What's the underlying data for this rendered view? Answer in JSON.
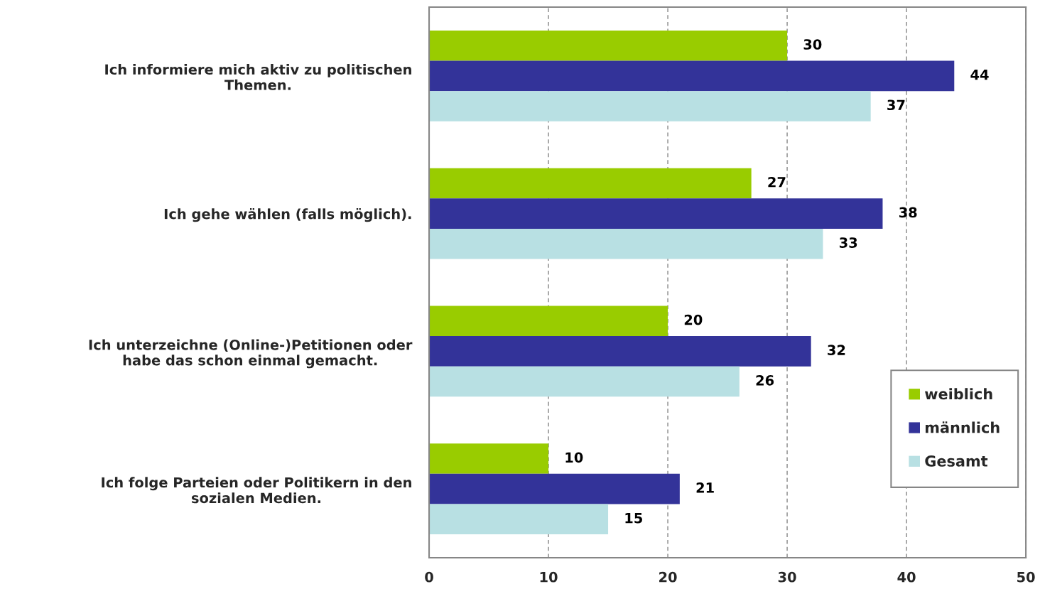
{
  "chart_data": {
    "type": "bar",
    "orientation": "horizontal",
    "categories": [
      "Ich informiere mich aktiv zu politischen\nThemen.",
      "Ich gehe wählen (falls möglich).",
      "Ich unterzeichne (Online-)Petitionen oder\nhabe das schon einmal gemacht.",
      "Ich folge Parteien oder Politikern in den\nsozialen Medien."
    ],
    "series": [
      {
        "name": "weiblich",
        "color": "#99cc00",
        "values": [
          30,
          27,
          20,
          10
        ]
      },
      {
        "name": "männlich",
        "color": "#333399",
        "values": [
          44,
          38,
          32,
          21
        ]
      },
      {
        "name": "Gesamt",
        "color": "#b8e0e3",
        "values": [
          37,
          33,
          26,
          15
        ]
      }
    ],
    "xlim": [
      0,
      50
    ],
    "xticks": [
      0,
      10,
      20,
      30,
      40,
      50
    ],
    "grid": "x",
    "legend": "bottom right",
    "data_labels": true
  }
}
